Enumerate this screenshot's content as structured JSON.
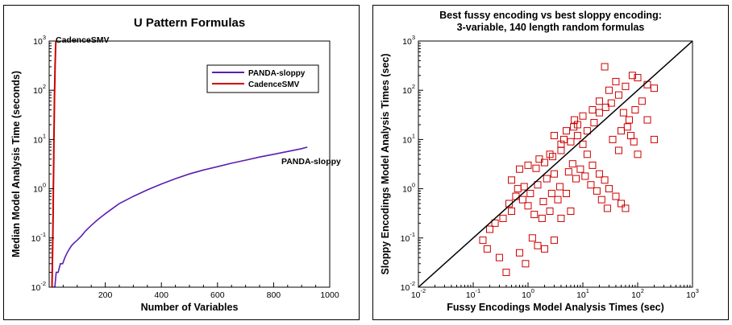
{
  "chart_data": [
    {
      "type": "line",
      "title": "U Pattern Formulas",
      "xlabel": "Number of Variables",
      "ylabel": "Median Model Analysis Time (seconds)",
      "xlim": [
        0,
        1000
      ],
      "ylim": [
        0.01,
        1000
      ],
      "yscale": "log",
      "x_ticks": [
        "200",
        "400",
        "600",
        "800",
        "1000"
      ],
      "y_ticks": [
        {
          "base": "10",
          "exp": "-2"
        },
        {
          "base": "10",
          "exp": "-1"
        },
        {
          "base": "10",
          "exp": "0"
        },
        {
          "base": "10",
          "exp": "1"
        },
        {
          "base": "10",
          "exp": "2"
        },
        {
          "base": "10",
          "exp": "3"
        }
      ],
      "legend_position": "top-right",
      "series": [
        {
          "name": "PANDA-sloppy",
          "color": "#5a1fb0",
          "x": [
            12,
            20,
            25,
            32,
            40,
            48,
            56,
            64,
            72,
            80,
            90,
            100,
            115,
            130,
            150,
            175,
            200,
            250,
            300,
            350,
            400,
            450,
            500,
            550,
            600,
            650,
            700,
            750,
            800,
            850,
            900,
            920
          ],
          "y": [
            0.01,
            0.01,
            0.02,
            0.02,
            0.03,
            0.03,
            0.04,
            0.05,
            0.06,
            0.07,
            0.08,
            0.09,
            0.11,
            0.14,
            0.18,
            0.24,
            0.31,
            0.5,
            0.7,
            0.95,
            1.25,
            1.6,
            2.0,
            2.4,
            2.8,
            3.3,
            3.8,
            4.4,
            5.0,
            5.7,
            6.5,
            7.0
          ]
        },
        {
          "name": "CadenceSMV",
          "color": "#cc0000",
          "x": [
            10,
            11,
            12,
            13,
            14,
            15,
            16,
            17,
            18,
            19,
            20,
            21,
            22,
            23,
            24
          ],
          "y": [
            0.01,
            0.02,
            0.05,
            0.1,
            0.3,
            1,
            3,
            10,
            30,
            80,
            150,
            300,
            500,
            800,
            1000
          ]
        }
      ],
      "annotations": [
        "CadenceSMV",
        "PANDA-sloppy"
      ]
    },
    {
      "type": "scatter",
      "title": "Best fussy encoding vs best sloppy encoding:",
      "subtitle": "3-variable, 140 length random formulas",
      "xlabel": "Fussy Encodings Model Analysis Times (sec)",
      "ylabel": "Sloppy Encodings Model Analysis Times (sec)",
      "xlim": [
        0.01,
        1000
      ],
      "ylim": [
        0.01,
        1000
      ],
      "xscale": "log",
      "yscale": "log",
      "x_ticks": [
        {
          "base": "10",
          "exp": "-2"
        },
        {
          "base": "10",
          "exp": "-1"
        },
        {
          "base": "10",
          "exp": "0"
        },
        {
          "base": "10",
          "exp": "1"
        },
        {
          "base": "10",
          "exp": "2"
        },
        {
          "base": "10",
          "exp": "3"
        }
      ],
      "y_ticks": [
        {
          "base": "10",
          "exp": "-2"
        },
        {
          "base": "10",
          "exp": "-1"
        },
        {
          "base": "10",
          "exp": "0"
        },
        {
          "base": "10",
          "exp": "1"
        },
        {
          "base": "10",
          "exp": "2"
        },
        {
          "base": "10",
          "exp": "3"
        }
      ],
      "marker_color": "#cc0000",
      "line_color": "#000000",
      "reference_line": {
        "x": [
          0.01,
          1000
        ],
        "y": [
          0.01,
          1000
        ]
      },
      "points": [
        [
          0.15,
          0.09
        ],
        [
          0.18,
          0.06
        ],
        [
          0.3,
          0.04
        ],
        [
          0.4,
          0.02
        ],
        [
          0.9,
          0.03
        ],
        [
          0.7,
          0.05
        ],
        [
          1.5,
          0.07
        ],
        [
          1.2,
          0.1
        ],
        [
          2.0,
          0.06
        ],
        [
          3.0,
          0.09
        ],
        [
          0.2,
          0.15
        ],
        [
          0.25,
          0.2
        ],
        [
          0.35,
          0.25
        ],
        [
          0.5,
          0.35
        ],
        [
          0.45,
          0.5
        ],
        [
          0.6,
          0.7
        ],
        [
          0.8,
          0.6
        ],
        [
          1.0,
          0.45
        ],
        [
          1.3,
          0.3
        ],
        [
          1.8,
          0.25
        ],
        [
          2.5,
          0.35
        ],
        [
          4.0,
          0.25
        ],
        [
          6.0,
          0.35
        ],
        [
          3.5,
          0.6
        ],
        [
          5.0,
          0.8
        ],
        [
          1.5,
          1.2
        ],
        [
          2.2,
          1.6
        ],
        [
          3.0,
          2.0
        ],
        [
          0.5,
          1.5
        ],
        [
          0.7,
          2.5
        ],
        [
          1.0,
          3.0
        ],
        [
          1.6,
          4.0
        ],
        [
          2.5,
          5.0
        ],
        [
          4.0,
          6.0
        ],
        [
          6.0,
          9.0
        ],
        [
          8.0,
          12
        ],
        [
          10,
          8
        ],
        [
          12,
          5
        ],
        [
          15,
          3
        ],
        [
          20,
          2
        ],
        [
          25,
          1.5
        ],
        [
          30,
          1.0
        ],
        [
          40,
          0.7
        ],
        [
          50,
          0.5
        ],
        [
          60,
          0.4
        ],
        [
          8,
          20
        ],
        [
          10,
          30
        ],
        [
          15,
          40
        ],
        [
          20,
          60
        ],
        [
          30,
          100
        ],
        [
          40,
          150
        ],
        [
          25,
          300
        ],
        [
          60,
          120
        ],
        [
          80,
          200
        ],
        [
          100,
          180
        ],
        [
          150,
          130
        ],
        [
          200,
          110
        ],
        [
          120,
          60
        ],
        [
          90,
          40
        ],
        [
          70,
          25
        ],
        [
          50,
          15
        ],
        [
          35,
          10
        ],
        [
          45,
          6
        ],
        [
          150,
          25
        ],
        [
          200,
          10
        ],
        [
          100,
          5
        ],
        [
          3,
          12
        ],
        [
          5,
          15
        ],
        [
          7,
          25
        ],
        [
          4,
          8
        ],
        [
          2.8,
          4.5
        ],
        [
          6.5,
          3.2
        ],
        [
          9,
          2.5
        ],
        [
          11,
          1.8
        ],
        [
          14,
          1.2
        ],
        [
          18,
          0.9
        ],
        [
          22,
          0.6
        ],
        [
          28,
          0.4
        ],
        [
          12,
          15
        ],
        [
          16,
          22
        ],
        [
          20,
          35
        ],
        [
          26,
          45
        ],
        [
          33,
          55
        ],
        [
          45,
          80
        ],
        [
          55,
          35
        ],
        [
          65,
          18
        ],
        [
          75,
          12
        ],
        [
          85,
          9
        ],
        [
          5.5,
          2.2
        ],
        [
          7.5,
          1.6
        ],
        [
          3.8,
          1.1
        ],
        [
          2.7,
          0.8
        ],
        [
          1.9,
          0.55
        ],
        [
          1.1,
          0.8
        ],
        [
          0.85,
          1.1
        ],
        [
          0.65,
          1.0
        ],
        [
          1.4,
          2.6
        ],
        [
          2.0,
          3.4
        ],
        [
          4.5,
          10
        ],
        [
          6.8,
          18
        ]
      ]
    }
  ]
}
